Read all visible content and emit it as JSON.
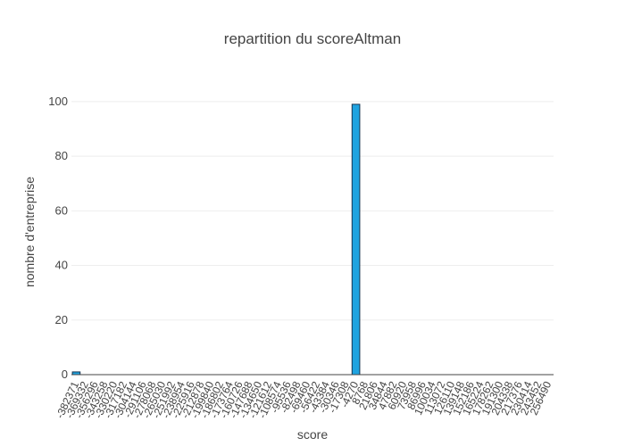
{
  "chart_data": {
    "type": "bar",
    "title": "repartition du scoreAltman",
    "x_label": "score",
    "y_label": "nombre d'entreprise",
    "categories": [
      "-382371",
      "-369332",
      "-356296",
      "-343258",
      "-330220",
      "-317182",
      "-304144",
      "-291106",
      "-278068",
      "-265030",
      "-251992",
      "-238954",
      "-225916",
      "-212878",
      "-199840",
      "-186802",
      "-173764",
      "-160726",
      "-147688",
      "-134650",
      "-121612",
      "-108574",
      "-95536",
      "-82498",
      "-69460",
      "-56422",
      "-43384",
      "-30346",
      "-17308",
      "-4270",
      "8768",
      "21806",
      "34844",
      "47882",
      "60920",
      "73958",
      "86996",
      "100034",
      "113072",
      "126110",
      "139148",
      "152186",
      "165224",
      "178262",
      "191300",
      "204338",
      "217376",
      "230414",
      "243452",
      "256490"
    ],
    "values": [
      1,
      0,
      0,
      0,
      0,
      0,
      0,
      0,
      0,
      0,
      0,
      0,
      0,
      0,
      0,
      0,
      0,
      0,
      0,
      0,
      0,
      0,
      0,
      0,
      0,
      0,
      0,
      0,
      0,
      99,
      0,
      0,
      0,
      0,
      0,
      0,
      0,
      0,
      0,
      0,
      0,
      0,
      0,
      0,
      0,
      0,
      0,
      0,
      0,
      0
    ],
    "color": "#1fa3e0",
    "edge_color": "#1a3550",
    "ylim": [
      0,
      104.2
    ],
    "yticks": [
      0,
      20,
      40,
      60,
      80,
      100
    ],
    "grid": true
  }
}
